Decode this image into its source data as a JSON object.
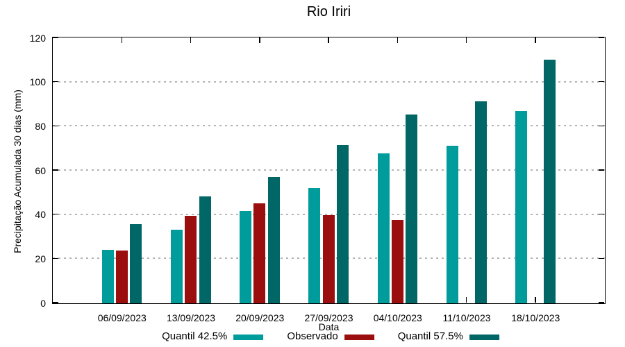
{
  "chart_data": {
    "type": "bar",
    "title": "Rio Iriri",
    "xlabel": "Data",
    "ylabel": "Precipitação Acumulada 30 dias (mm)",
    "categories": [
      "06/09/2023",
      "13/09/2023",
      "20/09/2023",
      "27/09/2023",
      "04/10/2023",
      "11/10/2023",
      "18/10/2023"
    ],
    "series": [
      {
        "name": "Quantil 42.5%",
        "color": "#009C9C",
        "values": [
          24.3,
          33.4,
          41.8,
          52.3,
          67.9,
          71.3,
          87.0
        ]
      },
      {
        "name": "Observado",
        "color": "#9A0E0E",
        "values": [
          23.9,
          39.6,
          45.1,
          40.0,
          37.8,
          null,
          null
        ]
      },
      {
        "name": "Quantil 57.5%",
        "color": "#006666",
        "values": [
          35.9,
          48.4,
          57.2,
          71.6,
          85.6,
          91.4,
          110.4
        ]
      }
    ],
    "ylim": [
      0,
      120
    ],
    "yticks": [
      0,
      20,
      40,
      60,
      80,
      100,
      120
    ],
    "grid": true,
    "legend_position": "bottom",
    "colors": {
      "grid": "#b4b4b4",
      "axis": "#000000",
      "background": "#ffffff"
    }
  }
}
